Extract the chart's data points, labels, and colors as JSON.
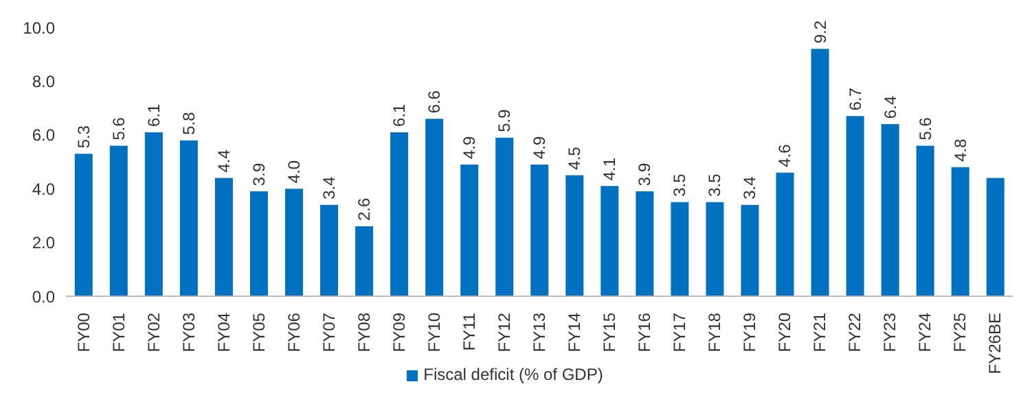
{
  "chart_data": {
    "type": "bar",
    "categories": [
      "FY00",
      "FY01",
      "FY02",
      "FY03",
      "FY04",
      "FY05",
      "FY06",
      "FY07",
      "FY08",
      "FY09",
      "FY10",
      "FY11",
      "FY12",
      "FY13",
      "FY14",
      "FY15",
      "FY16",
      "FY17",
      "FY18",
      "FY19",
      "FY20",
      "FY21",
      "FY22",
      "FY23",
      "FY24",
      "FY25",
      "FY26BE"
    ],
    "series": [
      {
        "name": "Fiscal deficit (% of GDP)",
        "color": "#0070c0",
        "values": [
          5.3,
          5.6,
          6.1,
          5.8,
          4.4,
          3.9,
          4.0,
          3.4,
          2.6,
          6.1,
          6.6,
          4.9,
          5.9,
          4.9,
          4.5,
          4.1,
          3.9,
          3.5,
          3.5,
          3.4,
          4.6,
          9.2,
          6.7,
          6.4,
          5.6,
          4.8,
          4.4
        ],
        "value_labels": [
          "5.3",
          "5.6",
          "6.1",
          "5.8",
          "4.4",
          "3.9",
          "4.0",
          "3.4",
          "2.6",
          "6.1",
          "6.6",
          "4.9",
          "5.9",
          "4.9",
          "4.5",
          "4.1",
          "3.9",
          "3.5",
          "3.5",
          "3.4",
          "4.6",
          "9.2",
          "6.7",
          "6.4",
          "5.6",
          "4.8",
          null
        ]
      }
    ],
    "ylim": [
      0,
      10
    ],
    "yticks": [
      {
        "value": 0,
        "label": "0.0"
      },
      {
        "value": 2,
        "label": "2.0"
      },
      {
        "value": 4,
        "label": "4.0"
      },
      {
        "value": 6,
        "label": "6.0"
      },
      {
        "value": 8,
        "label": "8.0"
      },
      {
        "value": 10,
        "label": "10.0"
      }
    ],
    "grid": false,
    "legend": "bottom"
  }
}
